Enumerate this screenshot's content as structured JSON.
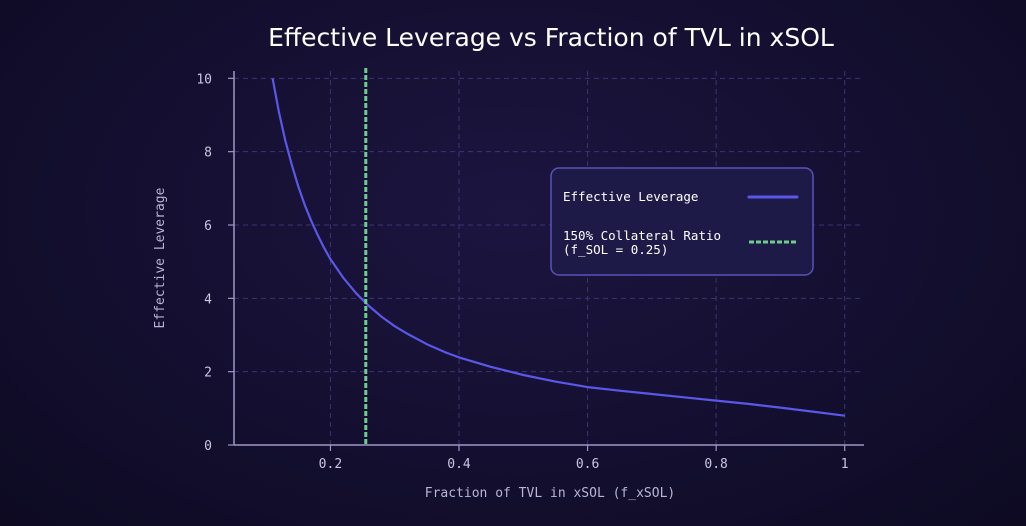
{
  "chart_data": {
    "type": "line",
    "title": "Effective Leverage vs Fraction of TVL in xSOL",
    "xlabel": "Fraction of TVL in xSOL (f_xSOL)",
    "ylabel": "Effective Leverage",
    "xlim": [
      0.05,
      1.03
    ],
    "ylim": [
      0,
      10.2
    ],
    "xticks": [
      0.2,
      0.4,
      0.6,
      0.8,
      1
    ],
    "xtick_labels": [
      "0.2",
      "0.4",
      "0.6",
      "0.8",
      "1"
    ],
    "yticks": [
      0,
      2,
      4,
      6,
      8,
      10
    ],
    "ytick_labels": [
      "0",
      "2",
      "4",
      "6",
      "8",
      "10"
    ],
    "grid": true,
    "legend_position": "right",
    "series": [
      {
        "name": "Effective Leverage",
        "color": "#5b57e8",
        "style": "solid",
        "x": [
          0.11,
          0.12,
          0.13,
          0.14,
          0.15,
          0.16,
          0.17,
          0.18,
          0.19,
          0.2,
          0.22,
          0.24,
          0.25,
          0.26,
          0.28,
          0.3,
          0.32,
          0.35,
          0.38,
          0.4,
          0.45,
          0.5,
          0.55,
          0.6,
          0.65,
          0.7,
          0.75,
          0.8,
          0.85,
          0.9,
          0.95,
          1.0
        ],
        "y": [
          10.0,
          9.07,
          8.29,
          7.63,
          7.05,
          6.55,
          6.12,
          5.73,
          5.38,
          5.07,
          4.56,
          4.14,
          3.96,
          3.79,
          3.49,
          3.24,
          3.03,
          2.75,
          2.52,
          2.39,
          2.13,
          1.91,
          1.73,
          1.58,
          1.48,
          1.39,
          1.3,
          1.21,
          1.12,
          1.02,
          0.91,
          0.8
        ]
      }
    ],
    "vlines": [
      {
        "name": "150% Collateral Ratio (f_SOL = 0.25)",
        "label_line1": "150% Collateral Ratio",
        "label_line2": "(f_SOL = 0.25)",
        "x": 0.255,
        "color": "#6ecf8c",
        "style": "dashed"
      }
    ]
  }
}
